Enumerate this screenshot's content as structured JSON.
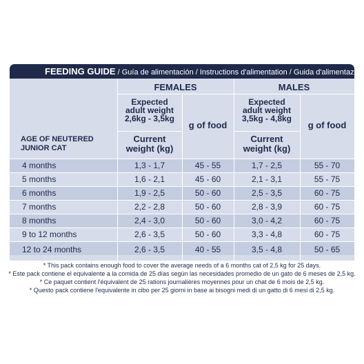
{
  "title": {
    "bold": "FEEDING GUIDE",
    "rest": " / Guía de alimentación / Instructions d'alimentation / Guida d'alimentazione"
  },
  "headers": {
    "females": "FEMALES",
    "males": "MALES",
    "expected_f_l1": "Expected",
    "expected_f_l2": "adult weight",
    "expected_f_l3": "2,6kg - 3,5kg",
    "expected_m_l1": "Expected",
    "expected_m_l2": "adult weight",
    "expected_m_l3": "3,5kg - 4,8kg",
    "gfood_f": "g of food",
    "gfood_m": "g of food",
    "current_f_l1": "Current",
    "current_f_l2": "weight (kg)",
    "current_m_l1": "Current",
    "current_m_l2": "weight (kg)",
    "age_l1": "AGE OF NEUTERED",
    "age_l2": "JUNIOR CAT"
  },
  "rows": [
    {
      "age": "4 months",
      "f_weight": "1,3 - 1,7",
      "f_food": "45 - 55",
      "m_weight": "1,7 - 2,5",
      "m_food": "55 - 70"
    },
    {
      "age": "5 months",
      "f_weight": "1,6 - 2,1",
      "f_food": "45 - 60",
      "m_weight": "2,1 - 3,1",
      "m_food": "55 - 75"
    },
    {
      "age": "6 months",
      "f_weight": "1,9 - 2,5",
      "f_food": "50 - 60",
      "m_weight": "2,5 - 3,5",
      "m_food": "60 - 75"
    },
    {
      "age": "7 months",
      "f_weight": "2,2 - 2,8",
      "f_food": "50 - 60",
      "m_weight": "2,8 - 3,9",
      "m_food": "60 - 75"
    },
    {
      "age": "8 months",
      "f_weight": "2,4 - 3,0",
      "f_food": "50 - 60",
      "m_weight": "3,0 - 4,2",
      "m_food": "60 - 75"
    },
    {
      "age": "9 to 12 months",
      "f_weight": "2,6 - 3,5",
      "f_food": "50 - 60",
      "m_weight": "3,3 - 4,8",
      "m_food": "60 - 75"
    },
    {
      "age": "12 to 24 months",
      "f_weight": "2,6 - 3,5",
      "f_food": "40 - 55",
      "m_weight": "3,5 - 4,8",
      "m_food": "50 - 65"
    }
  ],
  "footnotes": [
    "* This pack contains enough food to cover the average needs of a  6 months cat of 2,5 kg for 25 days.",
    "* Este pack contiene el equivalente a la comida de 25 días según las necesidades promedio de un gato de 6 meses de 2,5 kg.",
    "* Ce paquet contient l'équivalent de 25 rations journalières moyennes pour un chat de 6 mois de 2,5 kg.",
    "* Questo pack contiene l'equivalente in cibo per 25 giorni in base ai bisogni medi di un gatto di 6 mesi di 2,5 kg."
  ]
}
